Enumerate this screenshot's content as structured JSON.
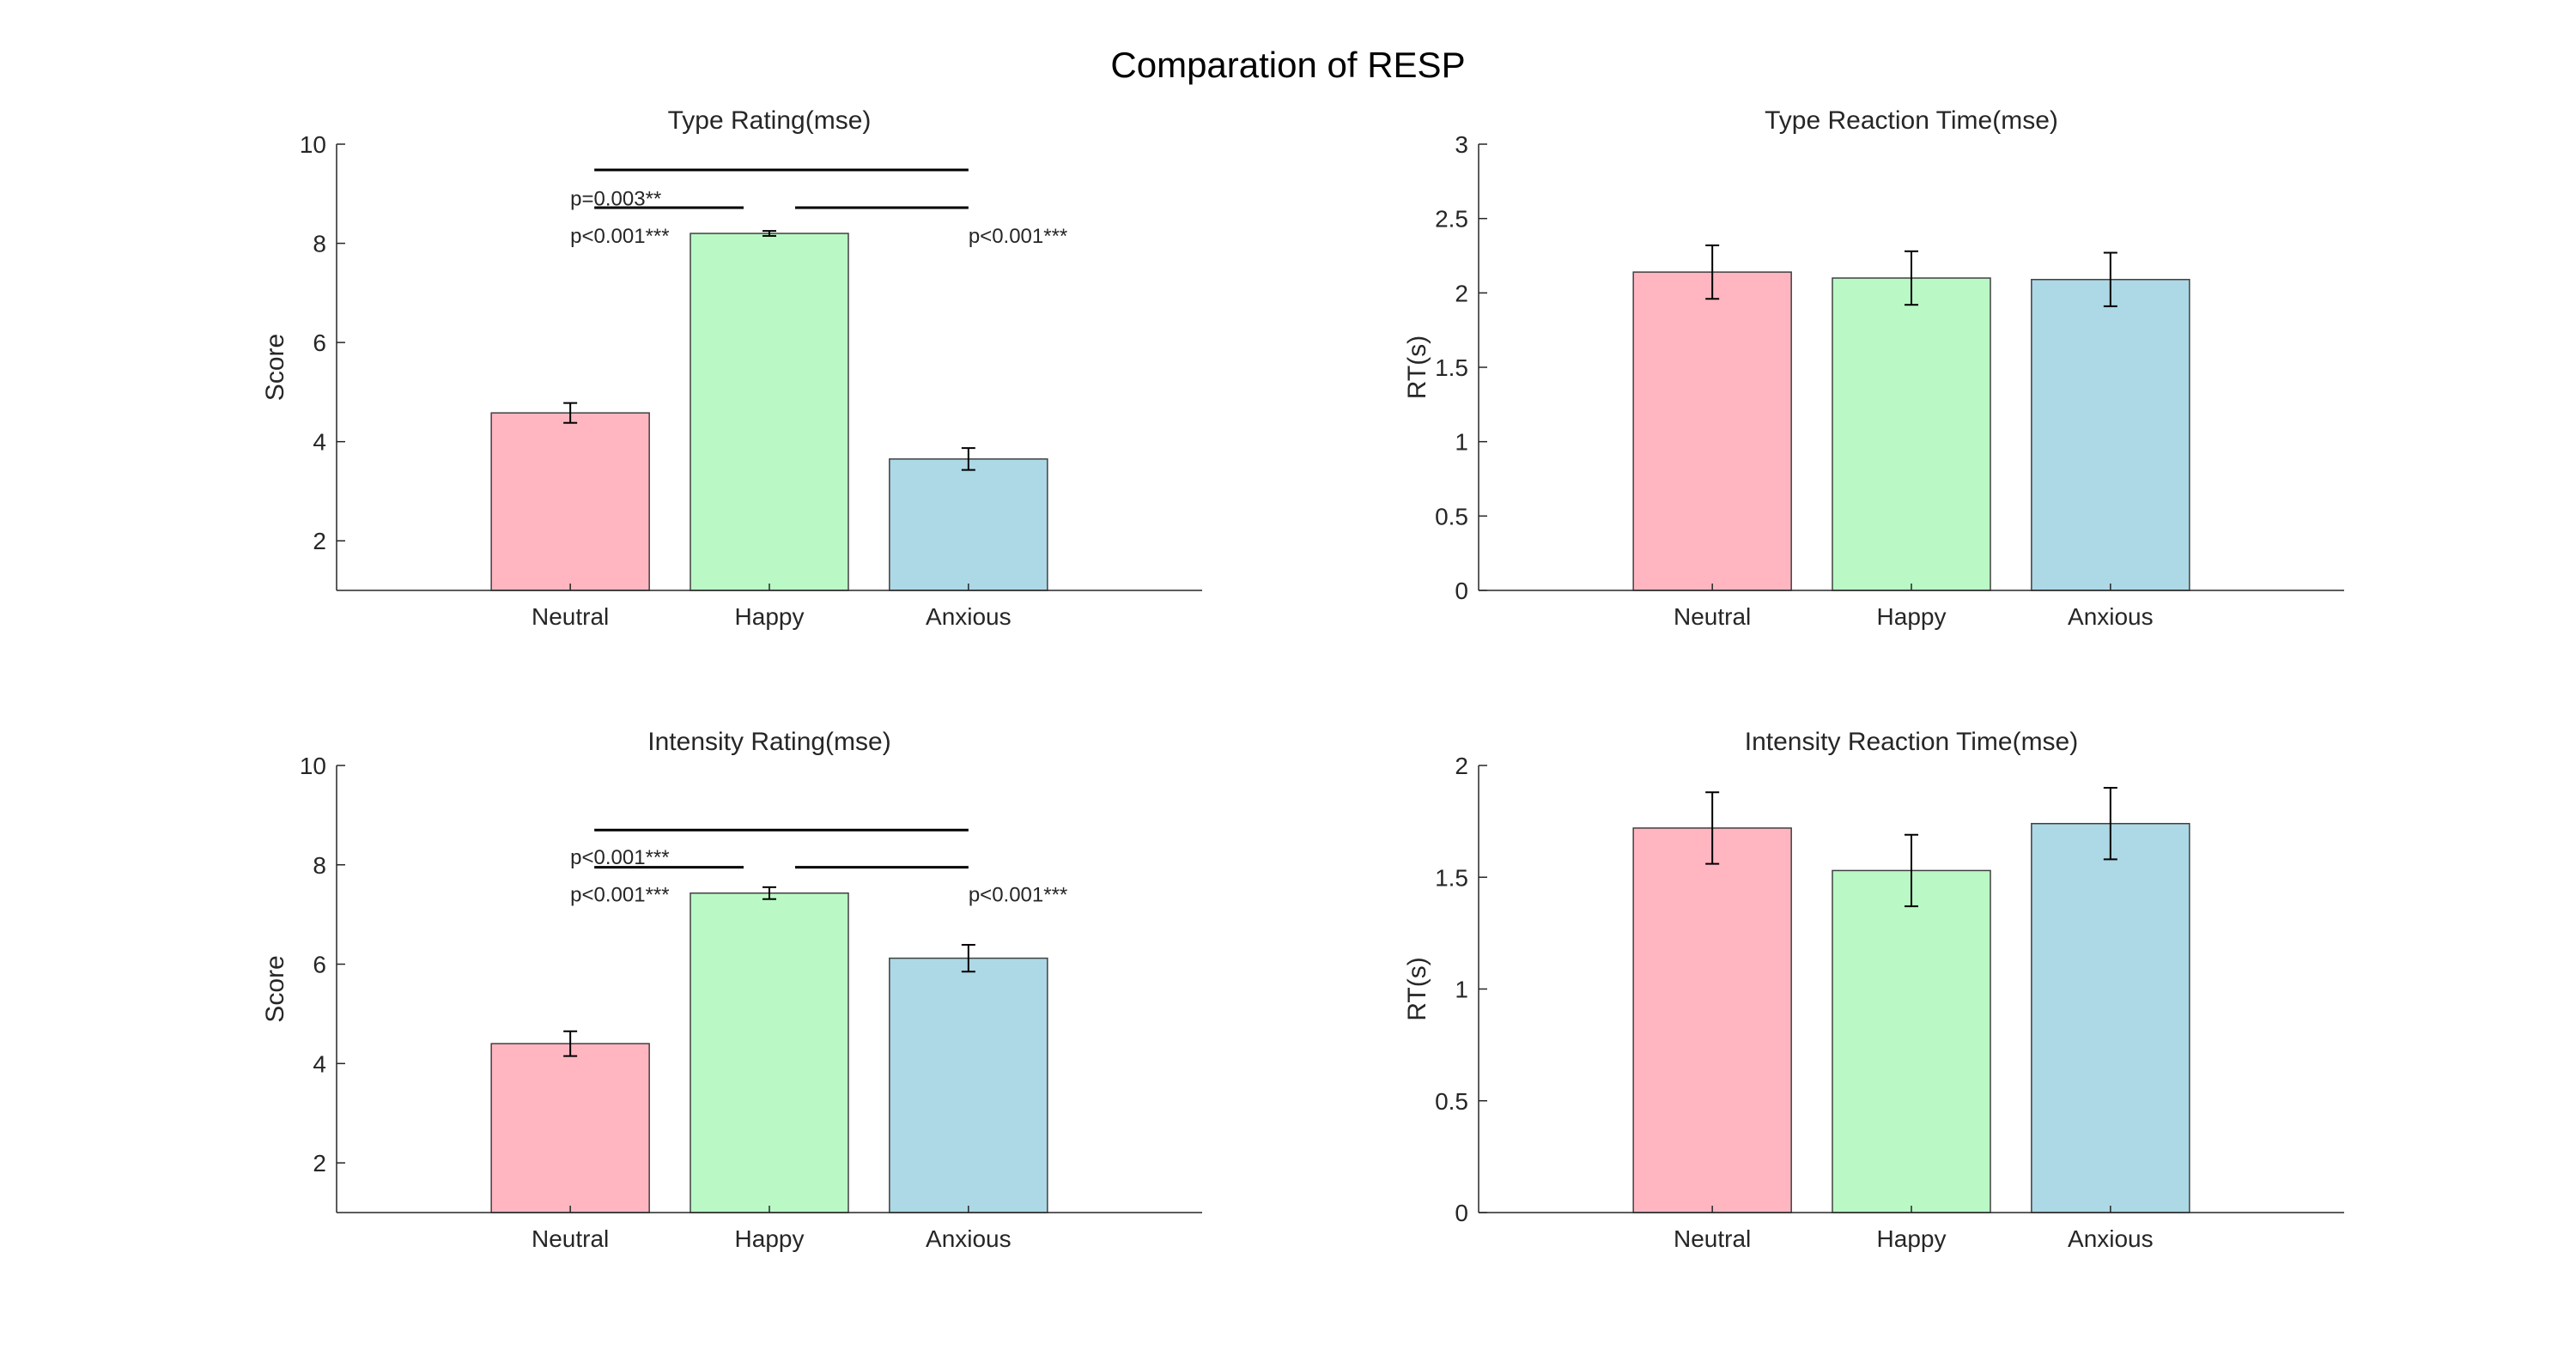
{
  "figure": {
    "title": "Comparation of RESP"
  },
  "colors": {
    "neutral": "#FFB6C1",
    "happy": "#BAF9C6",
    "anxious": "#ADD8E6",
    "edge": "#404040",
    "axis": "#262626"
  },
  "chart_data": [
    {
      "type": "bar",
      "title": "Type Rating(mse)",
      "ylabel": "Score",
      "xlabel": "",
      "categories": [
        "Neutral",
        "Happy",
        "Anxious"
      ],
      "values": [
        4.58,
        8.2,
        3.65
      ],
      "errors": [
        0.2,
        0.05,
        0.22
      ],
      "ylim": [
        1,
        10
      ],
      "yticks": [
        2,
        4,
        6,
        8,
        10
      ],
      "ytick_labels": [
        "2",
        "4",
        "6",
        "8",
        "10"
      ],
      "grid": false,
      "significance": [
        {
          "from": 0,
          "to": 2,
          "y": 9.48,
          "label": "p=0.003**",
          "label_pos": "left",
          "label_y": 8.9
        },
        {
          "from": 0,
          "to": 1,
          "y": 8.72,
          "label": "p<0.001***",
          "label_pos": "left",
          "label_y": 8.15
        },
        {
          "from": 1,
          "to": 2,
          "y": 8.72,
          "label": "p<0.001***",
          "label_pos": "right",
          "label_y": 8.15
        }
      ]
    },
    {
      "type": "bar",
      "title": "Type Reaction Time(mse)",
      "ylabel": "RT(s)",
      "xlabel": "",
      "categories": [
        "Neutral",
        "Happy",
        "Anxious"
      ],
      "values": [
        2.14,
        2.1,
        2.09
      ],
      "errors": [
        0.18,
        0.18,
        0.18
      ],
      "ylim": [
        0,
        3
      ],
      "yticks": [
        0,
        0.5,
        1,
        1.5,
        2,
        2.5,
        3
      ],
      "ytick_labels": [
        "0",
        "0.5",
        "1",
        "1.5",
        "2",
        "2.5",
        "3"
      ],
      "grid": false,
      "significance": []
    },
    {
      "type": "bar",
      "title": "Intensity Rating(mse)",
      "ylabel": "Score",
      "xlabel": "",
      "categories": [
        "Neutral",
        "Happy",
        "Anxious"
      ],
      "values": [
        4.4,
        7.43,
        6.12
      ],
      "errors": [
        0.25,
        0.12,
        0.27
      ],
      "ylim": [
        1,
        10
      ],
      "yticks": [
        2,
        4,
        6,
        8,
        10
      ],
      "ytick_labels": [
        "2",
        "4",
        "6",
        "8",
        "10"
      ],
      "grid": false,
      "significance": [
        {
          "from": 0,
          "to": 2,
          "y": 8.7,
          "label": "p<0.001***",
          "label_pos": "left",
          "label_y": 8.15
        },
        {
          "from": 0,
          "to": 1,
          "y": 7.95,
          "label": "p<0.001***",
          "label_pos": "left",
          "label_y": 7.4
        },
        {
          "from": 1,
          "to": 2,
          "y": 7.95,
          "label": "p<0.001***",
          "label_pos": "right",
          "label_y": 7.4
        }
      ]
    },
    {
      "type": "bar",
      "title": "Intensity Reaction Time(mse)",
      "ylabel": "RT(s)",
      "xlabel": "",
      "categories": [
        "Neutral",
        "Happy",
        "Anxious"
      ],
      "values": [
        1.72,
        1.53,
        1.74
      ],
      "errors": [
        0.16,
        0.16,
        0.16
      ],
      "ylim": [
        0,
        2
      ],
      "yticks": [
        0,
        0.5,
        1,
        1.5,
        2
      ],
      "ytick_labels": [
        "0",
        "0.5",
        "1",
        "1.5",
        "2"
      ],
      "grid": false,
      "significance": []
    }
  ]
}
